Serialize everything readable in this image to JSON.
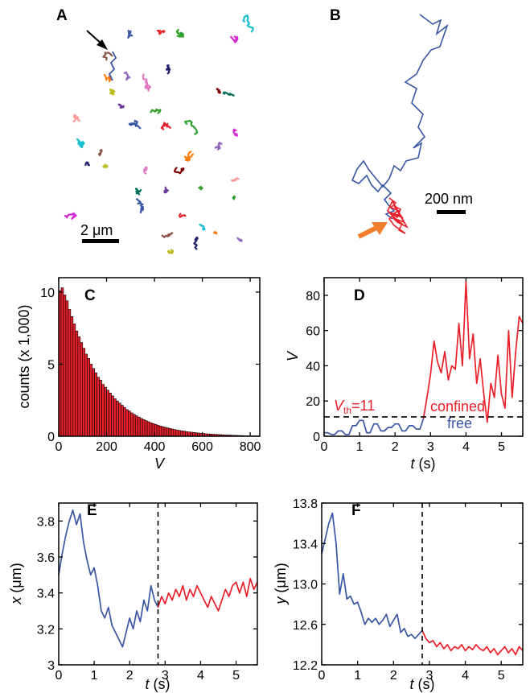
{
  "panel_labels": [
    "A",
    "B",
    "C",
    "D",
    "E",
    "F"
  ],
  "panel_a": {
    "scale_bar_label": "2 μm"
  },
  "panel_b": {
    "scale_bar_label": "200 nm"
  },
  "chart_data": [
    {
      "panel": "C",
      "type": "bar",
      "xlabel": "V",
      "ylabel": "counts (x 1,000)",
      "xlim": [
        0,
        840
      ],
      "ylim": [
        0,
        11
      ],
      "xticks": [
        0,
        200,
        400,
        600,
        800
      ],
      "yticks": [
        0,
        5,
        10
      ],
      "bin_width": 10,
      "bar_color": "#e8202a",
      "values": [
        10.1,
        10.3,
        9.8,
        9.4,
        8.8,
        8.3,
        7.8,
        7.3,
        6.9,
        6.5,
        6.1,
        5.7,
        5.4,
        5.0,
        4.7,
        4.4,
        4.1,
        3.9,
        3.6,
        3.4,
        3.2,
        3.0,
        2.8,
        2.6,
        2.45,
        2.3,
        2.15,
        2.0,
        1.85,
        1.75,
        1.62,
        1.52,
        1.42,
        1.33,
        1.24,
        1.16,
        1.08,
        1.01,
        0.94,
        0.88,
        0.82,
        0.76,
        0.71,
        0.66,
        0.62,
        0.58,
        0.54,
        0.5,
        0.46,
        0.43,
        0.4,
        0.37,
        0.35,
        0.32,
        0.3,
        0.28,
        0.26,
        0.24,
        0.22,
        0.2,
        0.19,
        0.17,
        0.16,
        0.15,
        0.14,
        0.13,
        0.12,
        0.11,
        0.1,
        0.09,
        0.08,
        0.08,
        0.07,
        0.06,
        0.06,
        0.05,
        0.05,
        0.04,
        0.04,
        0.03,
        0.03,
        0.03,
        0.02
      ]
    },
    {
      "panel": "D",
      "type": "line",
      "xlabel": "t (s)",
      "ylabel": "V",
      "xlim": [
        0,
        5.6
      ],
      "ylim": [
        0,
        90
      ],
      "xticks": [
        0,
        1,
        2,
        3,
        4,
        5
      ],
      "yticks": [
        0,
        20,
        40,
        60,
        80
      ],
      "threshold": 11,
      "threshold_label_main": "V",
      "threshold_label_sub": "th",
      "threshold_label_rest": "=11",
      "annotations": [
        {
          "text": "confined",
          "color": "#e8202a"
        },
        {
          "text": "free",
          "color": "#3a55a4"
        }
      ],
      "series": [
        {
          "color": "#3a55a4",
          "x": [
            0.0,
            0.1,
            0.2,
            0.3,
            0.4,
            0.5,
            0.6,
            0.7,
            0.8,
            0.9,
            1.0,
            1.1,
            1.2,
            1.3,
            1.4,
            1.5,
            1.6,
            1.7,
            1.8,
            1.9,
            2.0,
            2.1,
            2.2,
            2.3,
            2.4,
            2.5,
            2.6,
            2.7,
            2.8
          ],
          "y": [
            2,
            2,
            1,
            1,
            3,
            3,
            1,
            1,
            6,
            6,
            9,
            9,
            2,
            2,
            7,
            7,
            3,
            3,
            5,
            5,
            7,
            7,
            3,
            3,
            6,
            6,
            4,
            4,
            10
          ]
        },
        {
          "color": "#e8202a",
          "x": [
            2.8,
            2.9,
            3.0,
            3.1,
            3.2,
            3.3,
            3.4,
            3.5,
            3.6,
            3.7,
            3.8,
            3.9,
            4.0,
            4.1,
            4.2,
            4.3,
            4.4,
            4.5,
            4.6,
            4.7,
            4.8,
            4.9,
            5.0,
            5.1,
            5.2,
            5.3,
            5.4,
            5.5,
            5.6
          ],
          "y": [
            10,
            22,
            35,
            54,
            42,
            36,
            48,
            32,
            40,
            38,
            64,
            40,
            88,
            44,
            58,
            30,
            44,
            24,
            8,
            30,
            22,
            46,
            24,
            16,
            60,
            22,
            48,
            68,
            64
          ]
        }
      ]
    },
    {
      "panel": "E",
      "type": "line",
      "xlabel": "t (s)",
      "ylabel": "x (μm)",
      "xlim": [
        0,
        5.6
      ],
      "ylim": [
        3.0,
        3.9
      ],
      "xticks": [
        0,
        1,
        2,
        3,
        4,
        5
      ],
      "yticks": [
        "3",
        "3.2",
        "3.4",
        "3.6",
        "3.8"
      ],
      "divider_x": 2.8,
      "series": [
        {
          "color": "#3a55a4",
          "x": [
            0.0,
            0.1,
            0.2,
            0.3,
            0.4,
            0.5,
            0.6,
            0.7,
            0.8,
            0.9,
            1.0,
            1.1,
            1.2,
            1.3,
            1.4,
            1.5,
            1.6,
            1.7,
            1.8,
            1.9,
            2.0,
            2.1,
            2.2,
            2.3,
            2.4,
            2.5,
            2.6,
            2.7,
            2.8
          ],
          "y": [
            3.5,
            3.62,
            3.72,
            3.8,
            3.86,
            3.78,
            3.84,
            3.68,
            3.58,
            3.5,
            3.54,
            3.44,
            3.3,
            3.26,
            3.32,
            3.22,
            3.18,
            3.14,
            3.1,
            3.18,
            3.26,
            3.2,
            3.3,
            3.24,
            3.36,
            3.3,
            3.44,
            3.36,
            3.32
          ]
        },
        {
          "color": "#e8202a",
          "x": [
            2.8,
            2.9,
            3.0,
            3.1,
            3.2,
            3.3,
            3.4,
            3.5,
            3.6,
            3.7,
            3.8,
            3.9,
            4.0,
            4.1,
            4.2,
            4.3,
            4.4,
            4.5,
            4.6,
            4.7,
            4.8,
            4.9,
            5.0,
            5.1,
            5.2,
            5.3,
            5.4,
            5.5,
            5.6
          ],
          "y": [
            3.32,
            3.38,
            3.34,
            3.4,
            3.36,
            3.42,
            3.38,
            3.44,
            3.36,
            3.42,
            3.38,
            3.44,
            3.4,
            3.36,
            3.32,
            3.38,
            3.34,
            3.3,
            3.36,
            3.42,
            3.38,
            3.44,
            3.46,
            3.4,
            3.46,
            3.38,
            3.48,
            3.42,
            3.46
          ]
        }
      ]
    },
    {
      "panel": "F",
      "type": "line",
      "xlabel": "t (s)",
      "ylabel": "y (μm)",
      "xlim": [
        0,
        5.6
      ],
      "ylim": [
        12.2,
        13.8
      ],
      "xticks": [
        0,
        1,
        2,
        3,
        4,
        5
      ],
      "yticks": [
        "12.2",
        "12.6",
        "13.0",
        "13.4",
        "13.8"
      ],
      "divider_x": 2.8,
      "series": [
        {
          "color": "#3a55a4",
          "x": [
            0.0,
            0.1,
            0.2,
            0.3,
            0.4,
            0.5,
            0.6,
            0.7,
            0.8,
            0.9,
            1.0,
            1.1,
            1.2,
            1.3,
            1.4,
            1.5,
            1.6,
            1.7,
            1.8,
            1.9,
            2.0,
            2.1,
            2.2,
            2.3,
            2.4,
            2.5,
            2.6,
            2.7,
            2.8
          ],
          "y": [
            13.3,
            13.45,
            13.6,
            13.7,
            13.4,
            12.9,
            13.1,
            12.85,
            12.88,
            12.8,
            12.82,
            12.72,
            12.6,
            12.66,
            12.62,
            12.66,
            12.6,
            12.64,
            12.7,
            12.58,
            12.64,
            12.7,
            12.52,
            12.56,
            12.48,
            12.5,
            12.46,
            12.5,
            12.54
          ]
        },
        {
          "color": "#e8202a",
          "x": [
            2.8,
            2.9,
            3.0,
            3.1,
            3.2,
            3.3,
            3.4,
            3.5,
            3.6,
            3.7,
            3.8,
            3.9,
            4.0,
            4.1,
            4.2,
            4.3,
            4.4,
            4.5,
            4.6,
            4.7,
            4.8,
            4.9,
            5.0,
            5.1,
            5.2,
            5.3,
            5.4,
            5.5,
            5.6
          ],
          "y": [
            12.54,
            12.46,
            12.42,
            12.44,
            12.38,
            12.42,
            12.36,
            12.4,
            12.34,
            12.38,
            12.36,
            12.4,
            12.34,
            12.38,
            12.35,
            12.4,
            12.36,
            12.34,
            12.38,
            12.32,
            12.36,
            12.3,
            12.34,
            12.38,
            12.32,
            12.36,
            12.3,
            12.38,
            12.34
          ]
        }
      ]
    }
  ]
}
